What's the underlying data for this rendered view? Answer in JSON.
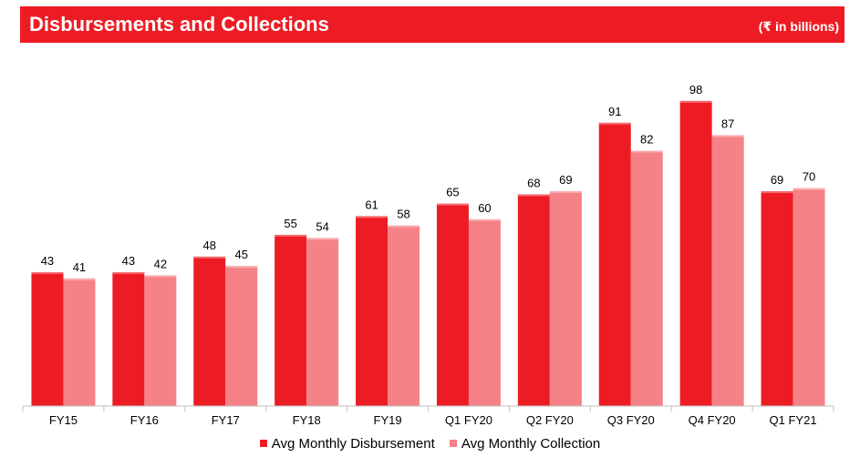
{
  "header": {
    "title": "Disbursements and Collections",
    "unit": "(₹ in  billions)"
  },
  "colors": {
    "header_bg": "#ed1c24",
    "disbursement": "#ed1c24",
    "collection": "#f58287"
  },
  "chart_data": {
    "type": "bar",
    "title": "",
    "categories": [
      "FY15",
      "FY16",
      "FY17",
      "FY18",
      "FY19",
      "Q1 FY20",
      "Q2 FY20",
      "Q3 FY20",
      "Q4 FY20",
      "Q1 FY21"
    ],
    "series": [
      {
        "name": "Avg Monthly Disbursement",
        "values": [
          43,
          43,
          48,
          55,
          61,
          65,
          68,
          91,
          98,
          69
        ]
      },
      {
        "name": "Avg Monthly Collection",
        "values": [
          41,
          42,
          45,
          54,
          58,
          60,
          69,
          82,
          87,
          70
        ]
      }
    ],
    "ylim": [
      0,
      100
    ],
    "grid": false,
    "legend_position": "bottom",
    "data_labels": true
  }
}
